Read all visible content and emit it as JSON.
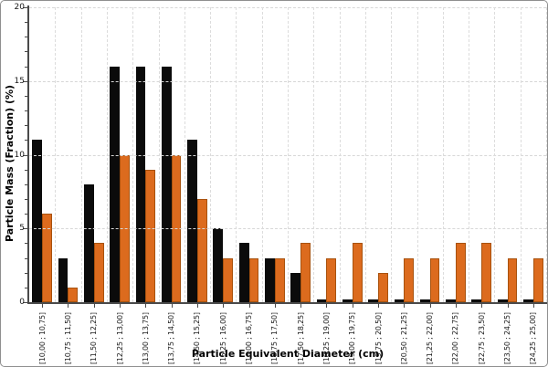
{
  "chart_data": {
    "type": "bar",
    "title": "",
    "xlabel": "Particle Equivalent Diameter (cm)",
    "ylabel": "Particle Mass (Fraction) (%)",
    "ylim": [
      0,
      20
    ],
    "y_major_ticks": [
      0,
      5,
      10,
      15,
      20
    ],
    "y_minor_tick_step": 1,
    "grid": "dashed horizontal at major ticks; dashed vertical at bin boundaries",
    "legend_position": "none",
    "categories": [
      "[10,00 ; 10,75]",
      "[10,75 ; 11,50]",
      "[11,50 ; 12,25]",
      "[12,25 ; 13,00]",
      "[13,00 ; 13,75]",
      "[13,75 ; 14,50]",
      "[14,50 ; 15,25]",
      "[15,25 ; 16,00]",
      "[16,00 ; 16,75]",
      "[16,75 ; 17,50]",
      "[17,50 ; 18,25]",
      "[18,25 ; 19,00]",
      "[19,00 ; 19,75]",
      "[19,75 ; 20,50]",
      "[20,50 ; 21,25]",
      "[21,25 ; 22,00]",
      "[22,00 ; 22,75]",
      "[22,75 ; 23,50]",
      "[23,50 ; 24,25]",
      "[24,25 ; 25,00]"
    ],
    "series": [
      {
        "name": "black_bars",
        "color": "#0b0b0b",
        "values": [
          11,
          3,
          8,
          16,
          16,
          16,
          11,
          5,
          4,
          3,
          2,
          0.2,
          0.2,
          0.2,
          0.2,
          0.2,
          0.2,
          0.2,
          0.2,
          0.2
        ]
      },
      {
        "name": "orange_bars",
        "color": "#dc6b1e",
        "border_color": "#a8520e",
        "values": [
          6,
          1,
          4,
          10,
          9,
          10,
          7,
          3,
          3,
          3,
          4,
          3,
          4,
          2,
          3,
          3,
          4,
          4,
          3,
          3
        ]
      }
    ],
    "axis_color": "#4a4a4a",
    "gridline_color": "#d9d9d9"
  }
}
